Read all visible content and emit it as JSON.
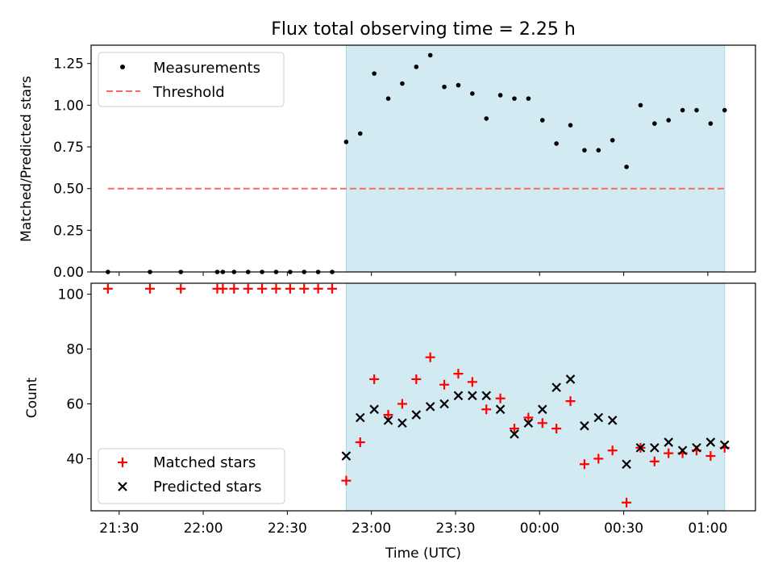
{
  "figure": {
    "title": "Flux total observing time = 2.25 h",
    "shade_color": "#add8e6",
    "marker_color_measure": "#000000",
    "marker_color_matched": "#ff0000",
    "marker_color_predicted": "#000000",
    "threshold_color": "#ff6666"
  },
  "chart_data": [
    {
      "type": "scatter",
      "panel": "top",
      "ylabel": "Matched/Predicted stars",
      "ylim": [
        0,
        1.36
      ],
      "yticks": [
        0,
        0.25,
        0.5,
        0.75,
        1.0,
        1.25
      ],
      "ytick_labels": [
        "0.00",
        "0.25",
        "0.50",
        "0.75",
        "1.00",
        "1.25"
      ],
      "xlim": [
        "21:20",
        "01:17"
      ],
      "xticks": [
        "21:30",
        "22:00",
        "22:30",
        "23:00",
        "23:30",
        "00:00",
        "00:30",
        "01:00"
      ],
      "shaded_span": [
        "22:51",
        "01:06"
      ],
      "legend": {
        "placement": "top-left",
        "entries": [
          "Measurements",
          "Threshold"
        ]
      },
      "threshold": {
        "name": "Threshold",
        "y": 0.5,
        "x_start": "21:26",
        "x_end": "01:06",
        "style": "dashed"
      },
      "series": [
        {
          "name": "Measurements",
          "marker": "dot",
          "x": [
            "21:26",
            "21:41",
            "21:52",
            "22:05",
            "22:07",
            "22:11",
            "22:16",
            "22:21",
            "22:26",
            "22:31",
            "22:36",
            "22:41",
            "22:46",
            "22:51",
            "22:56",
            "23:01",
            "23:06",
            "23:11",
            "23:16",
            "23:21",
            "23:26",
            "23:31",
            "23:36",
            "23:41",
            "23:46",
            "23:51",
            "23:56",
            "00:01",
            "00:06",
            "00:11",
            "00:16",
            "00:21",
            "00:26",
            "00:31",
            "00:36",
            "00:41",
            "00:46",
            "00:51",
            "00:56",
            "01:01",
            "01:06"
          ],
          "values": [
            0,
            0,
            0,
            0,
            0,
            0,
            0,
            0,
            0,
            0,
            0,
            0,
            0,
            0.78,
            0.83,
            1.19,
            1.04,
            1.13,
            1.23,
            1.3,
            1.11,
            1.12,
            1.07,
            0.92,
            1.06,
            1.04,
            1.04,
            0.91,
            0.77,
            0.88,
            0.73,
            0.73,
            0.79,
            0.63,
            1.0,
            0.89,
            0.91,
            0.97,
            0.97,
            0.89,
            0.97
          ]
        }
      ]
    },
    {
      "type": "scatter",
      "panel": "bottom",
      "xlabel": "Time (UTC)",
      "ylabel": "Count",
      "ylim": [
        21,
        104
      ],
      "yticks": [
        40,
        60,
        80,
        100
      ],
      "ytick_labels": [
        "40",
        "60",
        "80",
        "100"
      ],
      "xlim": [
        "21:20",
        "01:17"
      ],
      "xticks": [
        "21:30",
        "22:00",
        "22:30",
        "23:00",
        "23:30",
        "00:00",
        "00:30",
        "01:00"
      ],
      "shaded_span": [
        "22:51",
        "01:06"
      ],
      "legend": {
        "placement": "bottom-left",
        "entries": [
          "Matched stars",
          "Predicted stars"
        ]
      },
      "series": [
        {
          "name": "Matched stars",
          "marker": "plus",
          "x": [
            "21:26",
            "21:41",
            "21:52",
            "22:05",
            "22:07",
            "22:11",
            "22:16",
            "22:21",
            "22:26",
            "22:31",
            "22:36",
            "22:41",
            "22:46",
            "22:51",
            "22:56",
            "23:01",
            "23:06",
            "23:11",
            "23:16",
            "23:21",
            "23:26",
            "23:31",
            "23:36",
            "23:41",
            "23:46",
            "23:51",
            "23:56",
            "00:01",
            "00:06",
            "00:11",
            "00:16",
            "00:21",
            "00:26",
            "00:31",
            "00:36",
            "00:41",
            "00:46",
            "00:51",
            "00:56",
            "01:01",
            "01:06"
          ],
          "values": [
            102,
            102,
            102,
            102,
            102,
            102,
            102,
            102,
            102,
            102,
            102,
            102,
            102,
            32,
            46,
            69,
            56,
            60,
            69,
            77,
            67,
            71,
            68,
            58,
            62,
            51,
            55,
            53,
            51,
            61,
            38,
            40,
            43,
            24,
            44,
            39,
            42,
            42,
            43,
            41,
            44
          ]
        },
        {
          "name": "Predicted stars",
          "marker": "x",
          "x": [
            "22:51",
            "22:56",
            "23:01",
            "23:06",
            "23:11",
            "23:16",
            "23:21",
            "23:26",
            "23:31",
            "23:36",
            "23:41",
            "23:46",
            "23:51",
            "23:56",
            "00:01",
            "00:06",
            "00:11",
            "00:16",
            "00:21",
            "00:26",
            "00:31",
            "00:36",
            "00:41",
            "00:46",
            "00:51",
            "00:56",
            "01:01",
            "01:06"
          ],
          "values": [
            41,
            55,
            58,
            54,
            53,
            56,
            59,
            60,
            63,
            63,
            63,
            58,
            49,
            53,
            58,
            66,
            69,
            52,
            55,
            54,
            38,
            44,
            44,
            46,
            43,
            44,
            46,
            45
          ]
        }
      ]
    }
  ]
}
